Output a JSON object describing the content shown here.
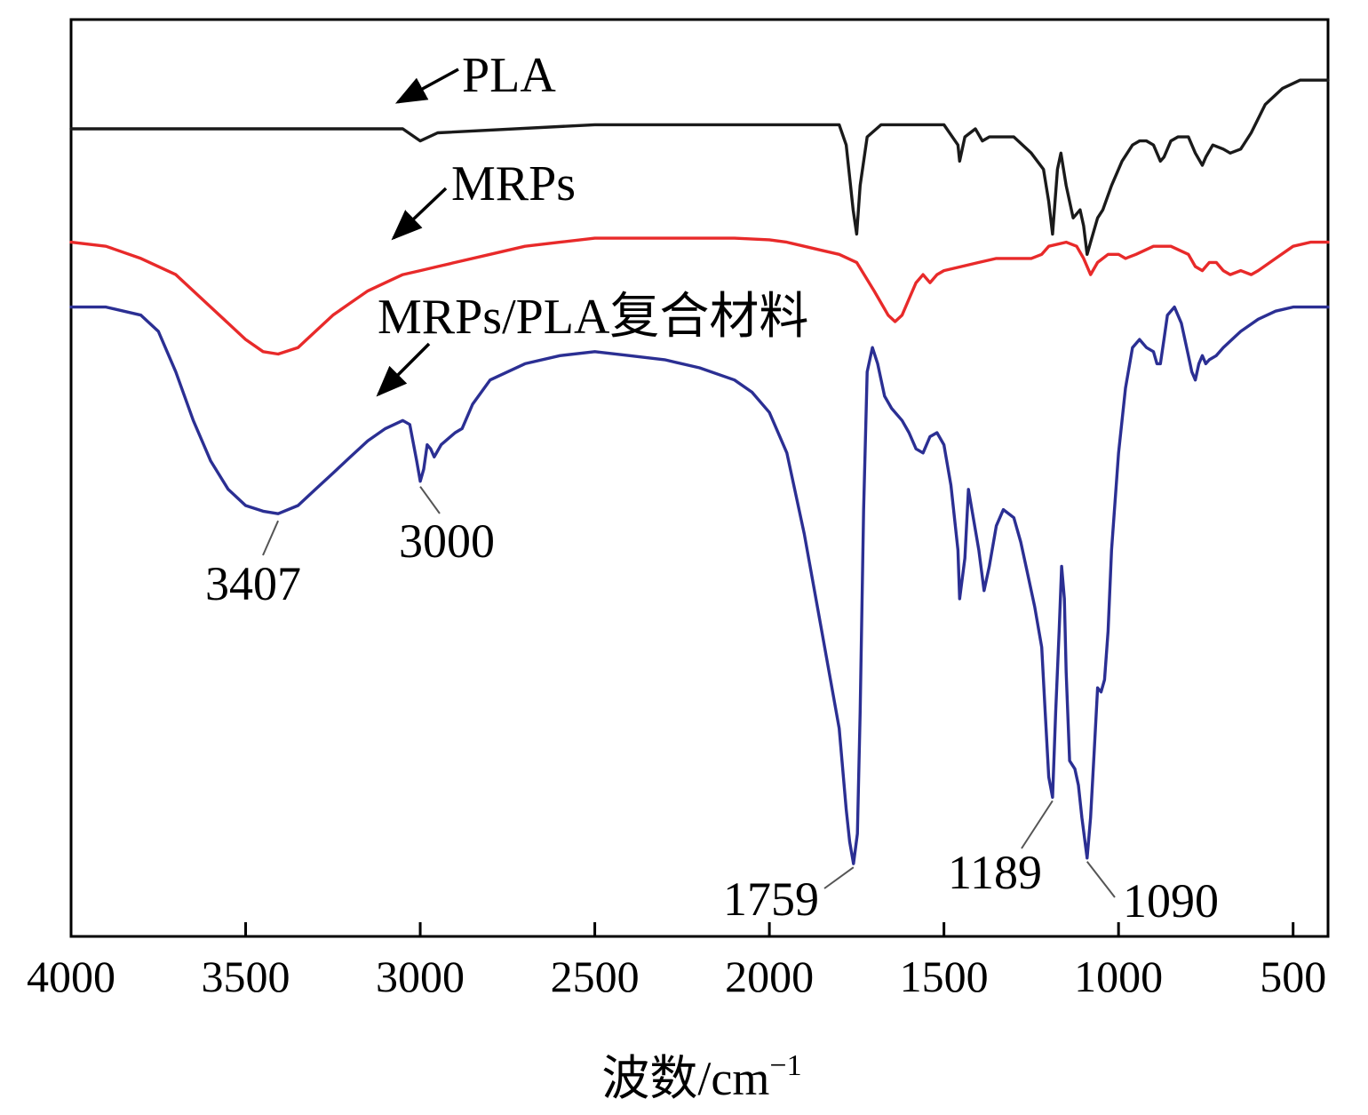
{
  "chart_data": {
    "type": "line",
    "title": "",
    "xlabel": "波数/cm⁻¹",
    "ylabel": "",
    "xlim": [
      4000,
      400
    ],
    "x_reversed": true,
    "y_ticks_shown": false,
    "grid": false,
    "x_ticks": [
      {
        "value": 4000,
        "label": "4000"
      },
      {
        "value": 3500,
        "label": "3500"
      },
      {
        "value": 3000,
        "label": "3000"
      },
      {
        "value": 2500,
        "label": "2500"
      },
      {
        "value": 2000,
        "label": "2000"
      },
      {
        "value": 1500,
        "label": "1500"
      },
      {
        "value": 1000,
        "label": "1000"
      },
      {
        "value": 500,
        "label": "500"
      }
    ],
    "series": [
      {
        "name": "PLA",
        "color": "#1a1a1a",
        "points": [
          [
            4000,
            92
          ],
          [
            3500,
            92
          ],
          [
            3050,
            92
          ],
          [
            3000,
            90.5
          ],
          [
            2950,
            91.5
          ],
          [
            2500,
            92.5
          ],
          [
            1900,
            92.5
          ],
          [
            1800,
            92.5
          ],
          [
            1780,
            90
          ],
          [
            1760,
            82
          ],
          [
            1750,
            79
          ],
          [
            1740,
            85
          ],
          [
            1720,
            91
          ],
          [
            1680,
            92.5
          ],
          [
            1500,
            92.5
          ],
          [
            1460,
            90
          ],
          [
            1455,
            88
          ],
          [
            1440,
            91
          ],
          [
            1410,
            92
          ],
          [
            1390,
            90.5
          ],
          [
            1370,
            91
          ],
          [
            1300,
            91
          ],
          [
            1250,
            89
          ],
          [
            1215,
            87
          ],
          [
            1200,
            83
          ],
          [
            1189,
            79
          ],
          [
            1175,
            87
          ],
          [
            1165,
            89
          ],
          [
            1150,
            85
          ],
          [
            1130,
            81
          ],
          [
            1110,
            82
          ],
          [
            1100,
            80
          ],
          [
            1090,
            76.5
          ],
          [
            1080,
            78
          ],
          [
            1060,
            81
          ],
          [
            1045,
            82
          ],
          [
            1020,
            85
          ],
          [
            990,
            88
          ],
          [
            960,
            90
          ],
          [
            940,
            90.5
          ],
          [
            920,
            90.5
          ],
          [
            900,
            90
          ],
          [
            880,
            88
          ],
          [
            870,
            88.5
          ],
          [
            850,
            90.5
          ],
          [
            830,
            91
          ],
          [
            800,
            91
          ],
          [
            780,
            89
          ],
          [
            760,
            87.5
          ],
          [
            750,
            88.5
          ],
          [
            730,
            90
          ],
          [
            700,
            89.5
          ],
          [
            680,
            89
          ],
          [
            650,
            89.5
          ],
          [
            620,
            91.5
          ],
          [
            580,
            95
          ],
          [
            530,
            97
          ],
          [
            480,
            98
          ],
          [
            400,
            98
          ]
        ]
      },
      {
        "name": "MRPs",
        "color": "#e82a2a",
        "points": [
          [
            4000,
            78
          ],
          [
            3900,
            77.5
          ],
          [
            3800,
            76
          ],
          [
            3700,
            74
          ],
          [
            3600,
            70
          ],
          [
            3500,
            66
          ],
          [
            3450,
            64.5
          ],
          [
            3407,
            64.2
          ],
          [
            3350,
            65
          ],
          [
            3300,
            67
          ],
          [
            3250,
            69
          ],
          [
            3200,
            70.5
          ],
          [
            3150,
            72
          ],
          [
            3100,
            73
          ],
          [
            3050,
            74
          ],
          [
            3000,
            74.5
          ],
          [
            2950,
            75
          ],
          [
            2900,
            75.5
          ],
          [
            2800,
            76.5
          ],
          [
            2700,
            77.5
          ],
          [
            2600,
            78
          ],
          [
            2500,
            78.5
          ],
          [
            2400,
            78.5
          ],
          [
            2300,
            78.5
          ],
          [
            2200,
            78.5
          ],
          [
            2100,
            78.5
          ],
          [
            2000,
            78.3
          ],
          [
            1950,
            78
          ],
          [
            1900,
            77.5
          ],
          [
            1850,
            77
          ],
          [
            1800,
            76.5
          ],
          [
            1750,
            75.5
          ],
          [
            1700,
            72
          ],
          [
            1660,
            69
          ],
          [
            1640,
            68.2
          ],
          [
            1620,
            69
          ],
          [
            1600,
            71
          ],
          [
            1580,
            73
          ],
          [
            1560,
            74
          ],
          [
            1540,
            73
          ],
          [
            1520,
            74
          ],
          [
            1500,
            74.5
          ],
          [
            1450,
            75
          ],
          [
            1400,
            75.5
          ],
          [
            1350,
            76
          ],
          [
            1300,
            76
          ],
          [
            1250,
            76
          ],
          [
            1220,
            76.5
          ],
          [
            1200,
            77.5
          ],
          [
            1150,
            78
          ],
          [
            1120,
            77.5
          ],
          [
            1100,
            76
          ],
          [
            1080,
            74
          ],
          [
            1060,
            75.5
          ],
          [
            1030,
            76.5
          ],
          [
            1000,
            76.5
          ],
          [
            980,
            76
          ],
          [
            950,
            76.5
          ],
          [
            900,
            77.5
          ],
          [
            850,
            77.5
          ],
          [
            800,
            76.5
          ],
          [
            780,
            75
          ],
          [
            760,
            74.5
          ],
          [
            740,
            75.5
          ],
          [
            720,
            75.5
          ],
          [
            700,
            74.5
          ],
          [
            680,
            74
          ],
          [
            650,
            74.5
          ],
          [
            620,
            74
          ],
          [
            600,
            74.5
          ],
          [
            550,
            76
          ],
          [
            500,
            77.5
          ],
          [
            450,
            78
          ],
          [
            400,
            78
          ]
        ]
      },
      {
        "name": "MRPs/PLA复合材料",
        "color": "#2b2f93",
        "points": [
          [
            4000,
            70
          ],
          [
            3900,
            70
          ],
          [
            3800,
            69
          ],
          [
            3750,
            67
          ],
          [
            3700,
            62
          ],
          [
            3650,
            56
          ],
          [
            3600,
            51
          ],
          [
            3550,
            47.5
          ],
          [
            3500,
            45.5
          ],
          [
            3450,
            44.8
          ],
          [
            3407,
            44.5
          ],
          [
            3350,
            45.5
          ],
          [
            3300,
            47.5
          ],
          [
            3250,
            49.5
          ],
          [
            3200,
            51.5
          ],
          [
            3150,
            53.5
          ],
          [
            3100,
            55
          ],
          [
            3050,
            56
          ],
          [
            3030,
            55.5
          ],
          [
            3010,
            51
          ],
          [
            3000,
            48.5
          ],
          [
            2990,
            50
          ],
          [
            2980,
            53
          ],
          [
            2970,
            52.5
          ],
          [
            2960,
            51.5
          ],
          [
            2940,
            53
          ],
          [
            2900,
            54.5
          ],
          [
            2880,
            55
          ],
          [
            2850,
            58
          ],
          [
            2800,
            61
          ],
          [
            2700,
            63
          ],
          [
            2600,
            64
          ],
          [
            2500,
            64.5
          ],
          [
            2400,
            64
          ],
          [
            2300,
            63.5
          ],
          [
            2200,
            62.5
          ],
          [
            2100,
            61
          ],
          [
            2050,
            59.5
          ],
          [
            2000,
            57
          ],
          [
            1950,
            52
          ],
          [
            1900,
            42
          ],
          [
            1850,
            30
          ],
          [
            1800,
            18
          ],
          [
            1780,
            8
          ],
          [
            1770,
            4
          ],
          [
            1759,
            1.3
          ],
          [
            1748,
            5
          ],
          [
            1740,
            20
          ],
          [
            1730,
            45
          ],
          [
            1720,
            62
          ],
          [
            1705,
            65
          ],
          [
            1690,
            63
          ],
          [
            1670,
            59
          ],
          [
            1650,
            57.5
          ],
          [
            1620,
            56
          ],
          [
            1600,
            54.5
          ],
          [
            1580,
            52.5
          ],
          [
            1560,
            52
          ],
          [
            1540,
            54
          ],
          [
            1520,
            54.5
          ],
          [
            1500,
            53
          ],
          [
            1480,
            48
          ],
          [
            1460,
            40
          ],
          [
            1455,
            34
          ],
          [
            1440,
            39
          ],
          [
            1430,
            47.5
          ],
          [
            1420,
            45
          ],
          [
            1400,
            40
          ],
          [
            1385,
            35
          ],
          [
            1370,
            38
          ],
          [
            1350,
            43
          ],
          [
            1330,
            45
          ],
          [
            1300,
            44
          ],
          [
            1280,
            41
          ],
          [
            1260,
            37
          ],
          [
            1240,
            33
          ],
          [
            1220,
            28
          ],
          [
            1210,
            20
          ],
          [
            1200,
            12
          ],
          [
            1189,
            9.5
          ],
          [
            1180,
            20
          ],
          [
            1170,
            30
          ],
          [
            1163,
            38
          ],
          [
            1155,
            34
          ],
          [
            1150,
            25
          ],
          [
            1140,
            14
          ],
          [
            1125,
            13
          ],
          [
            1115,
            11
          ],
          [
            1105,
            7
          ],
          [
            1090,
            2
          ],
          [
            1080,
            7
          ],
          [
            1070,
            15
          ],
          [
            1060,
            23
          ],
          [
            1050,
            22.5
          ],
          [
            1040,
            24
          ],
          [
            1030,
            30
          ],
          [
            1020,
            40
          ],
          [
            1000,
            52
          ],
          [
            980,
            60
          ],
          [
            960,
            65
          ],
          [
            940,
            66
          ],
          [
            920,
            65
          ],
          [
            900,
            64.5
          ],
          [
            890,
            63
          ],
          [
            880,
            63
          ],
          [
            870,
            66
          ],
          [
            860,
            69
          ],
          [
            840,
            70
          ],
          [
            820,
            68
          ],
          [
            800,
            64
          ],
          [
            790,
            62
          ],
          [
            780,
            61
          ],
          [
            770,
            63
          ],
          [
            760,
            64
          ],
          [
            750,
            63
          ],
          [
            740,
            63.5
          ],
          [
            720,
            64
          ],
          [
            700,
            65
          ],
          [
            650,
            67
          ],
          [
            600,
            68.5
          ],
          [
            550,
            69.5
          ],
          [
            500,
            70
          ],
          [
            450,
            70
          ],
          [
            400,
            70
          ]
        ]
      }
    ],
    "annotations": [
      {
        "text": "PLA",
        "points_to_series": "PLA"
      },
      {
        "text": "MRPs",
        "points_to_series": "MRPs"
      },
      {
        "text": "MRPs/PLA复合材料",
        "points_to_series": "MRPs/PLA复合材料"
      }
    ],
    "peak_labels": [
      {
        "text": "3407",
        "x": 3407,
        "series": "MRPs/PLA复合材料"
      },
      {
        "text": "3000",
        "x": 3000,
        "series": "MRPs/PLA复合材料"
      },
      {
        "text": "1759",
        "x": 1759,
        "series": "MRPs/PLA复合材料"
      },
      {
        "text": "1189",
        "x": 1189,
        "series": "MRPs/PLA复合材料"
      },
      {
        "text": "1090",
        "x": 1090,
        "series": "MRPs/PLA复合材料"
      }
    ]
  },
  "xlabel_main": "波数/cm",
  "xlabel_sup": "−1"
}
